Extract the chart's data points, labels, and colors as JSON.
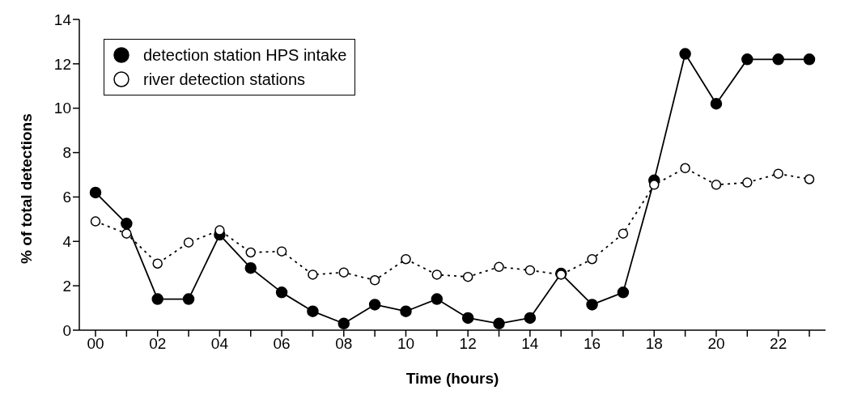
{
  "chart_data": {
    "type": "line",
    "xlabel": "Time (hours)",
    "ylabel": "% of total detections",
    "categories": [
      "00",
      null,
      "02",
      null,
      "04",
      null,
      "06",
      null,
      "08",
      null,
      "10",
      null,
      "12",
      null,
      "14",
      null,
      "16",
      null,
      "18",
      null,
      "20",
      null,
      "22",
      null
    ],
    "series": [
      {
        "name": "detection station HPS intake",
        "color": "#000000",
        "line_style": "solid",
        "values": [
          6.2,
          4.8,
          1.4,
          1.4,
          4.3,
          2.8,
          1.7,
          0.85,
          0.3,
          1.15,
          0.85,
          1.4,
          0.55,
          0.3,
          0.55,
          2.55,
          1.15,
          1.7,
          6.75,
          12.45,
          10.2,
          12.2,
          12.2,
          12.2
        ]
      },
      {
        "name": "river detection stations",
        "color": "#000000",
        "line_style": "dotted",
        "values": [
          4.9,
          4.35,
          3.0,
          3.95,
          4.5,
          3.5,
          3.55,
          2.5,
          2.6,
          2.25,
          3.2,
          2.5,
          2.4,
          2.85,
          2.7,
          2.5,
          3.2,
          4.35,
          6.55,
          7.3,
          6.55,
          6.65,
          7.05,
          6.8
        ]
      }
    ],
    "ylim": [
      0,
      14
    ],
    "yticks": [
      0,
      2,
      4,
      6,
      8,
      10,
      12,
      14
    ],
    "grid": false,
    "legend": "top left",
    "marker": "circle"
  }
}
